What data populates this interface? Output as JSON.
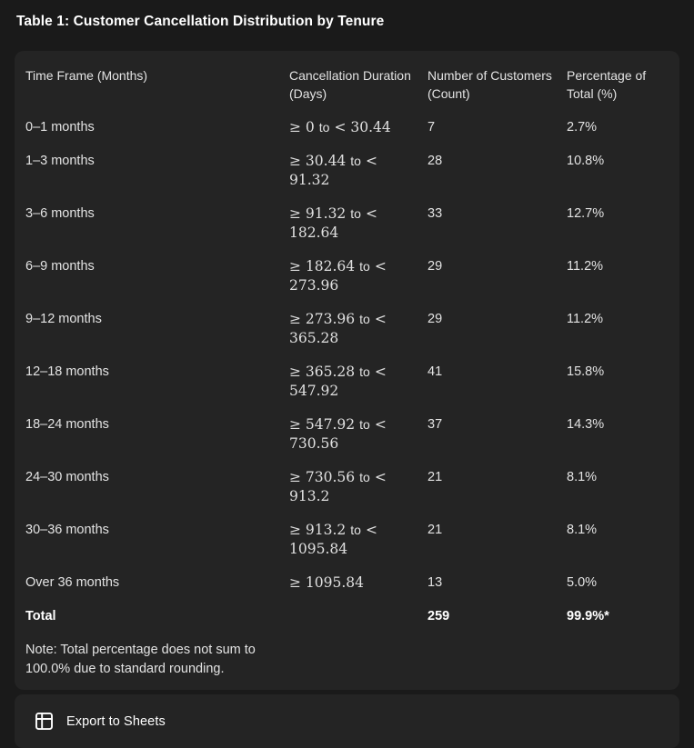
{
  "title": "Table 1: Customer Cancellation Distribution by Tenure",
  "table": {
    "columns": [
      "Time Frame (Months)",
      "Cancellation Duration (Days)",
      "Number of Customers (Count)",
      "Percentage of Total (%)"
    ],
    "rows": [
      {
        "tenure": "0–1 months",
        "duration": [
          [
            "m",
            "≥ 0"
          ],
          [
            "t",
            "to"
          ],
          [
            "m",
            "< 30.44"
          ]
        ],
        "count": "7",
        "percent": "2.7%"
      },
      {
        "tenure": "1–3 months",
        "duration": [
          [
            "m",
            "≥ 30.44"
          ],
          [
            "t",
            "to"
          ],
          [
            "m",
            "<"
          ],
          [
            "br"
          ],
          [
            "m",
            "91.32"
          ]
        ],
        "count": "28",
        "percent": "10.8%"
      },
      {
        "tenure": "3–6 months",
        "duration": [
          [
            "m",
            "≥ 91.32"
          ],
          [
            "t",
            "to"
          ],
          [
            "m",
            "<"
          ],
          [
            "br"
          ],
          [
            "m",
            "182.64"
          ]
        ],
        "count": "33",
        "percent": "12.7%"
      },
      {
        "tenure": "6–9 months",
        "duration": [
          [
            "m",
            "≥ 182.64"
          ],
          [
            "t",
            "to"
          ],
          [
            "m",
            "<"
          ],
          [
            "br"
          ],
          [
            "m",
            "273.96"
          ]
        ],
        "count": "29",
        "percent": "11.2%"
      },
      {
        "tenure": "9–12 months",
        "duration": [
          [
            "m",
            "≥ 273.96"
          ],
          [
            "t",
            "to"
          ],
          [
            "m",
            "<"
          ],
          [
            "br"
          ],
          [
            "m",
            "365.28"
          ]
        ],
        "count": "29",
        "percent": "11.2%"
      },
      {
        "tenure": "12–18 months",
        "duration": [
          [
            "m",
            "≥ 365.28"
          ],
          [
            "t",
            "to"
          ],
          [
            "m",
            "<"
          ],
          [
            "br"
          ],
          [
            "m",
            "547.92"
          ]
        ],
        "count": "41",
        "percent": "15.8%"
      },
      {
        "tenure": "18–24 months",
        "duration": [
          [
            "m",
            "≥ 547.92"
          ],
          [
            "t",
            "to"
          ],
          [
            "m",
            "<"
          ],
          [
            "br"
          ],
          [
            "m",
            "730.56"
          ]
        ],
        "count": "37",
        "percent": "14.3%"
      },
      {
        "tenure": "24–30 months",
        "duration": [
          [
            "m",
            "≥ 730.56"
          ],
          [
            "t",
            "to"
          ],
          [
            "m",
            "<"
          ],
          [
            "br"
          ],
          [
            "m",
            "913.2"
          ]
        ],
        "count": "21",
        "percent": "8.1%"
      },
      {
        "tenure": "30–36 months",
        "duration": [
          [
            "m",
            "≥ 913.2"
          ],
          [
            "t",
            "to"
          ],
          [
            "m",
            "<"
          ],
          [
            "br"
          ],
          [
            "m",
            "1095.84"
          ]
        ],
        "count": "21",
        "percent": "8.1%"
      },
      {
        "tenure": "Over 36 months",
        "duration": [
          [
            "m",
            "≥ 1095.84"
          ]
        ],
        "count": "13",
        "percent": "5.0%"
      }
    ],
    "total": {
      "label": "Total",
      "count": "259",
      "percent": "99.9%*"
    }
  },
  "note": {
    "lines": [
      "Note: Total percentage does not sum to",
      "100.0% due to standard rounding."
    ]
  },
  "export": {
    "label": "Export to Sheets",
    "icon": "table-grid-icon"
  },
  "colors": {
    "page_bg": "#1a1a1a",
    "card_bg": "#242424",
    "text": "#e3e3e3",
    "text_bright": "#ffffff"
  }
}
